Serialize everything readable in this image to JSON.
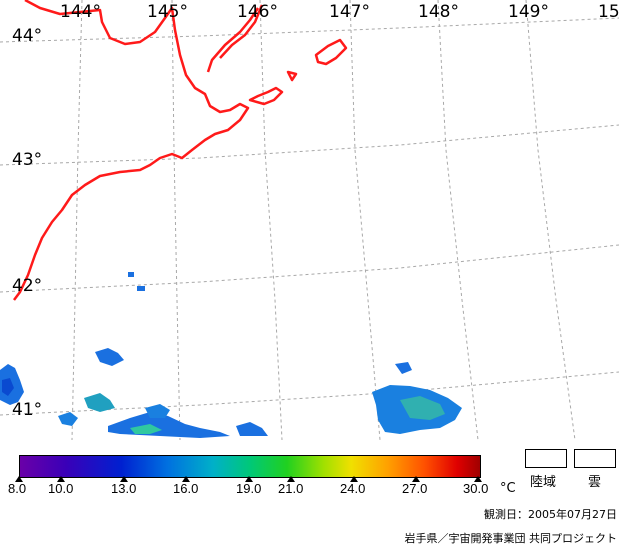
{
  "map": {
    "longitude_labels": [
      "144°",
      "145°",
      "146°",
      "147°",
      "148°",
      "149°",
      "15"
    ],
    "latitude_labels": [
      "44°",
      "43°",
      "42°",
      "41°"
    ]
  },
  "colorbar": {
    "ticks": [
      "8.0",
      "10.0",
      "13.0",
      "16.0",
      "19.0",
      "21.0",
      "24.0",
      "27.0",
      "30.0"
    ],
    "unit": "°C",
    "colors": [
      "#6a00a8",
      "#0020d0",
      "#00b0c8",
      "#20d020",
      "#f0e000",
      "#ff5000",
      "#a00000"
    ]
  },
  "legend": {
    "land_label": "陸域",
    "cloud_label": "雲"
  },
  "observation": {
    "date_text": "観測日：2005年07月27日"
  },
  "credit": {
    "text": "岩手県／宇宙開発事業団  共同プロジェクト"
  },
  "colors": {
    "coastline": "#ff0000",
    "grid": "#a0a0a0"
  }
}
